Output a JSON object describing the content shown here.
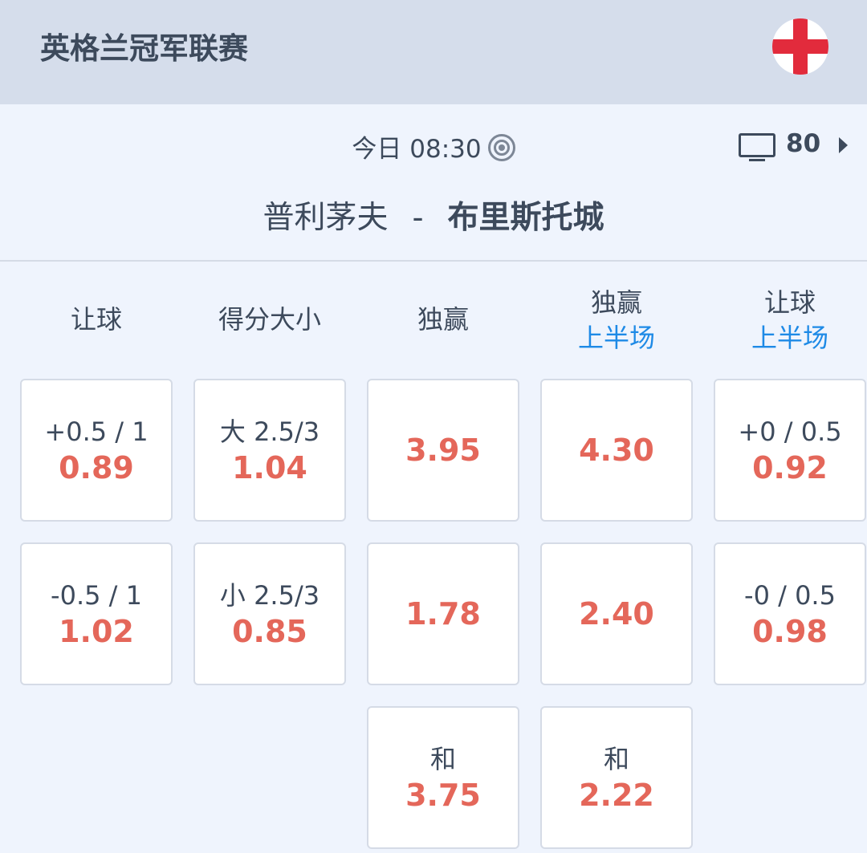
{
  "header": {
    "league": "英格兰冠军联赛",
    "flag_icon": "england-flag-icon"
  },
  "match": {
    "time": "今日 08:30",
    "count": "80",
    "home": "普利茅夫",
    "separator": "-",
    "away": "布里斯托城"
  },
  "colors": {
    "odds": "#e4675a",
    "accent": "#1e8ae6"
  },
  "columns": [
    {
      "title": "让球",
      "sub": "",
      "cells": [
        {
          "label": "+0.5 / 1",
          "odd": "0.89"
        },
        {
          "label": "-0.5 / 1",
          "odd": "1.02"
        }
      ]
    },
    {
      "title": "得分大小",
      "sub": "",
      "cells": [
        {
          "label": "大 2.5/3",
          "odd": "1.04"
        },
        {
          "label": "小 2.5/3",
          "odd": "0.85"
        }
      ]
    },
    {
      "title": "独赢",
      "sub": "",
      "cells": [
        {
          "label": "",
          "odd": "3.95"
        },
        {
          "label": "",
          "odd": "1.78"
        },
        {
          "label": "和",
          "odd": "3.75"
        }
      ]
    },
    {
      "title": "独赢",
      "sub": "上半场",
      "cells": [
        {
          "label": "",
          "odd": "4.30"
        },
        {
          "label": "",
          "odd": "2.40"
        },
        {
          "label": "和",
          "odd": "2.22"
        }
      ]
    },
    {
      "title": "让球",
      "sub": "上半场",
      "cells": [
        {
          "label": "+0 / 0.5",
          "odd": "0.92"
        },
        {
          "label": "-0 / 0.5",
          "odd": "0.98"
        }
      ]
    }
  ]
}
